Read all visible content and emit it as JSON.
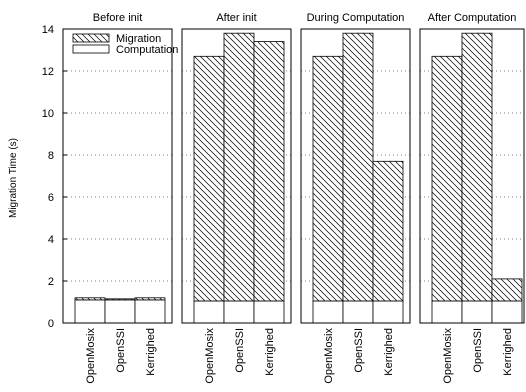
{
  "chart_data": {
    "type": "bar",
    "stacked": true,
    "ylabel": "Migration Time (s)",
    "ylim": [
      0,
      14
    ],
    "yticks": [
      0,
      2,
      4,
      6,
      8,
      10,
      12,
      14
    ],
    "grid": true,
    "legend_position": "top-left",
    "groups": [
      "Before init",
      "After init",
      "During Computation",
      "After Computation"
    ],
    "categories": [
      "OpenMosix",
      "OpenSSI",
      "Kerrighed"
    ],
    "series": [
      {
        "name": "Computation",
        "pattern": "plain",
        "values": [
          [
            1.1,
            1.1,
            1.1
          ],
          [
            1.05,
            1.05,
            1.05
          ],
          [
            1.05,
            1.05,
            1.05
          ],
          [
            1.05,
            1.05,
            1.05
          ]
        ]
      },
      {
        "name": "Migration",
        "pattern": "hatched",
        "values": [
          [
            0.1,
            0.05,
            0.1
          ],
          [
            11.65,
            12.75,
            12.35
          ],
          [
            11.65,
            12.75,
            6.65
          ],
          [
            11.65,
            12.75,
            1.05
          ]
        ]
      }
    ],
    "colors": {
      "fill": "#ffffff",
      "line": "#000000"
    }
  }
}
